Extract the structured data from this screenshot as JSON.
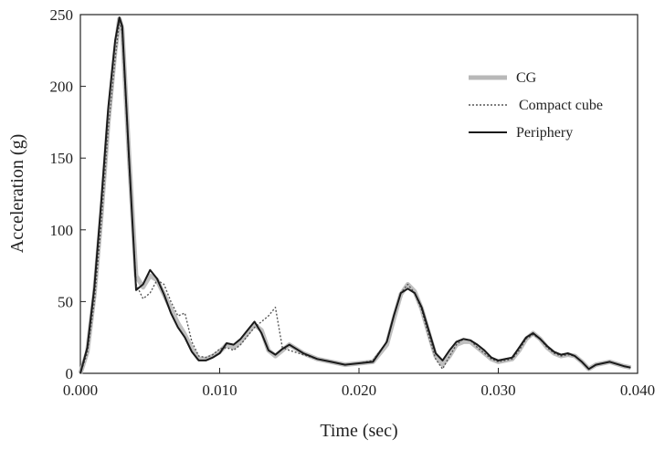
{
  "chart_data": {
    "type": "line",
    "title": "",
    "xlabel": "Time (sec)",
    "ylabel": "Acceleration (g)",
    "xlim": [
      0,
      0.04
    ],
    "ylim": [
      0,
      250
    ],
    "x_ticks": [
      0,
      0.01,
      0.02,
      0.03,
      0.04
    ],
    "x_tick_labels": [
      "0.000",
      "0.010",
      "0.020",
      "0.030",
      "0.040"
    ],
    "y_ticks": [
      0,
      50,
      100,
      150,
      200,
      250
    ],
    "y_tick_labels": [
      "0",
      "50",
      "100",
      "150",
      "200",
      "250"
    ],
    "grid": false,
    "legend_position": "top-right",
    "series": [
      {
        "name": "CG",
        "color": "#b8b8b8",
        "style": "thick-light",
        "x": [
          0,
          0.0005,
          0.001,
          0.0015,
          0.002,
          0.0025,
          0.0028,
          0.003,
          0.0035,
          0.004,
          0.0045,
          0.005,
          0.0055,
          0.006,
          0.0065,
          0.007,
          0.0075,
          0.008,
          0.0085,
          0.009,
          0.0095,
          0.01,
          0.0105,
          0.011,
          0.0115,
          0.012,
          0.0125,
          0.013,
          0.0135,
          0.014,
          0.0145,
          0.015,
          0.016,
          0.017,
          0.018,
          0.019,
          0.02,
          0.021,
          0.022,
          0.0225,
          0.023,
          0.0235,
          0.024,
          0.0245,
          0.025,
          0.0255,
          0.026,
          0.0265,
          0.027,
          0.0275,
          0.028,
          0.0285,
          0.029,
          0.0295,
          0.03,
          0.031,
          0.0315,
          0.032,
          0.0325,
          0.033,
          0.0335,
          0.034,
          0.0345,
          0.035,
          0.0355,
          0.036,
          0.0365,
          0.037,
          0.038,
          0.039,
          0.0395
        ],
        "y": [
          0,
          15,
          55,
          110,
          175,
          225,
          247,
          240,
          150,
          68,
          60,
          68,
          65,
          55,
          45,
          35,
          27,
          17,
          10,
          10,
          12,
          15,
          20,
          18,
          22,
          28,
          34,
          30,
          16,
          12,
          16,
          20,
          14,
          10,
          8,
          6,
          7,
          8,
          20,
          38,
          55,
          62,
          57,
          45,
          28,
          12,
          6,
          12,
          20,
          22,
          22,
          18,
          14,
          10,
          8,
          10,
          16,
          24,
          28,
          24,
          18,
          14,
          12,
          13,
          12,
          8,
          3,
          6,
          8,
          5,
          4
        ]
      },
      {
        "name": "Compact cube",
        "color": "#555555",
        "style": "dotted",
        "x": [
          0,
          0.0005,
          0.001,
          0.0015,
          0.002,
          0.0025,
          0.0028,
          0.003,
          0.0035,
          0.004,
          0.0045,
          0.005,
          0.0055,
          0.006,
          0.0065,
          0.007,
          0.0075,
          0.008,
          0.0085,
          0.009,
          0.0095,
          0.01,
          0.0105,
          0.011,
          0.0115,
          0.012,
          0.0125,
          0.013,
          0.0135,
          0.014,
          0.0145,
          0.015,
          0.016,
          0.017,
          0.018,
          0.019,
          0.02,
          0.021,
          0.022,
          0.0225,
          0.023,
          0.0235,
          0.024,
          0.0245,
          0.025,
          0.0255,
          0.026,
          0.0265,
          0.027,
          0.0275,
          0.028,
          0.0285,
          0.029,
          0.0295,
          0.03,
          0.031,
          0.0315,
          0.032,
          0.0325,
          0.033,
          0.0335,
          0.034,
          0.0345,
          0.035,
          0.0355,
          0.036,
          0.0365,
          0.037,
          0.038,
          0.039,
          0.0395
        ],
        "y": [
          0,
          14,
          50,
          105,
          170,
          220,
          245,
          238,
          145,
          62,
          52,
          56,
          65,
          62,
          50,
          40,
          42,
          22,
          12,
          11,
          13,
          17,
          18,
          16,
          20,
          26,
          32,
          36,
          40,
          46,
          18,
          16,
          13,
          10,
          8,
          6,
          7,
          9,
          22,
          40,
          56,
          62,
          56,
          44,
          26,
          10,
          3,
          12,
          20,
          24,
          23,
          18,
          14,
          10,
          8,
          10,
          16,
          24,
          27,
          24,
          18,
          14,
          12,
          13,
          12,
          8,
          3,
          6,
          8,
          5,
          4
        ]
      },
      {
        "name": "Periphery",
        "color": "#1a1a1a",
        "style": "solid",
        "x": [
          0,
          0.0005,
          0.001,
          0.0015,
          0.002,
          0.0025,
          0.0028,
          0.003,
          0.0035,
          0.004,
          0.0045,
          0.005,
          0.0055,
          0.006,
          0.0065,
          0.007,
          0.0075,
          0.008,
          0.0085,
          0.009,
          0.0095,
          0.01,
          0.0105,
          0.011,
          0.0115,
          0.012,
          0.0125,
          0.013,
          0.0135,
          0.014,
          0.0145,
          0.015,
          0.016,
          0.017,
          0.018,
          0.019,
          0.02,
          0.021,
          0.022,
          0.0225,
          0.023,
          0.0235,
          0.024,
          0.0245,
          0.025,
          0.0255,
          0.026,
          0.0265,
          0.027,
          0.0275,
          0.028,
          0.0285,
          0.029,
          0.0295,
          0.03,
          0.031,
          0.0315,
          0.032,
          0.0325,
          0.033,
          0.0335,
          0.034,
          0.0345,
          0.035,
          0.0355,
          0.036,
          0.0365,
          0.037,
          0.038,
          0.039,
          0.0395
        ],
        "y": [
          0,
          18,
          60,
          120,
          185,
          232,
          248,
          242,
          148,
          58,
          62,
          72,
          66,
          55,
          42,
          32,
          25,
          15,
          9,
          9,
          11,
          14,
          21,
          20,
          24,
          30,
          36,
          28,
          16,
          13,
          17,
          20,
          14,
          10,
          8,
          6,
          7,
          8,
          22,
          40,
          56,
          59,
          56,
          46,
          30,
          14,
          9,
          16,
          22,
          24,
          23,
          20,
          16,
          11,
          9,
          11,
          18,
          25,
          28,
          24,
          19,
          15,
          13,
          14,
          12,
          8,
          3,
          6,
          8,
          5,
          4
        ]
      }
    ]
  }
}
